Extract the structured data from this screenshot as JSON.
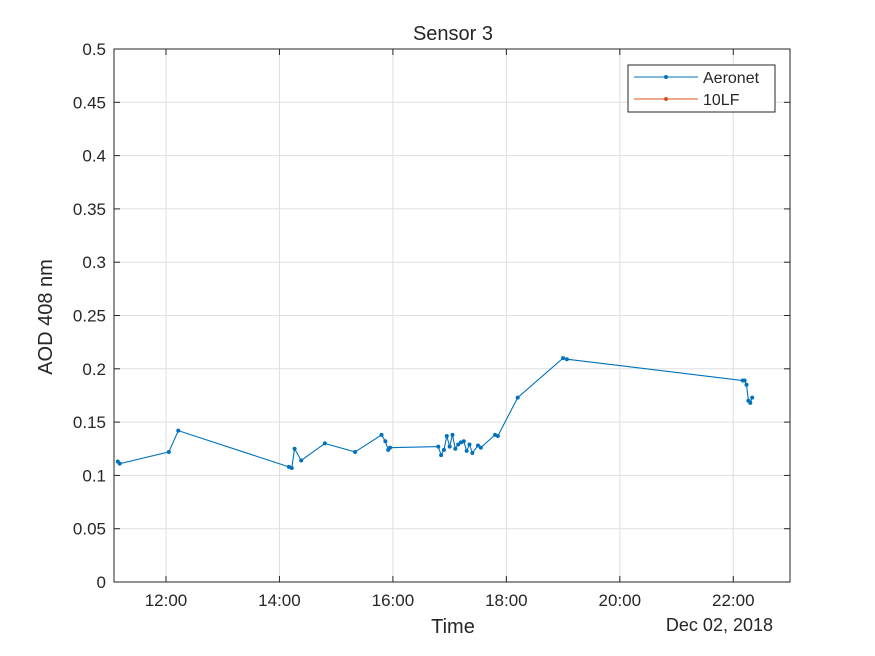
{
  "chart_data": {
    "type": "line",
    "title": "Sensor 3",
    "xlabel": "Time",
    "ylabel": "AOD 408 nm",
    "x_date_label": "Dec 02, 2018",
    "xlim": [
      "11:05",
      "23:00"
    ],
    "ylim": [
      0,
      0.5
    ],
    "grid": true,
    "legend_position": "top-right",
    "x_ticks": [
      {
        "value": "12:00",
        "label": "12:00"
      },
      {
        "value": "14:00",
        "label": "14:00"
      },
      {
        "value": "16:00",
        "label": "16:00"
      },
      {
        "value": "18:00",
        "label": "18:00"
      },
      {
        "value": "20:00",
        "label": "20:00"
      },
      {
        "value": "22:00",
        "label": "22:00"
      }
    ],
    "y_ticks": [
      {
        "value": 0,
        "label": "0"
      },
      {
        "value": 0.05,
        "label": "0.05"
      },
      {
        "value": 0.1,
        "label": "0.1"
      },
      {
        "value": 0.15,
        "label": "0.15"
      },
      {
        "value": 0.2,
        "label": "0.2"
      },
      {
        "value": 0.25,
        "label": "0.25"
      },
      {
        "value": 0.3,
        "label": "0.3"
      },
      {
        "value": 0.35,
        "label": "0.35"
      },
      {
        "value": 0.4,
        "label": "0.4"
      },
      {
        "value": 0.45,
        "label": "0.45"
      },
      {
        "value": 0.5,
        "label": "0.5"
      }
    ],
    "series": [
      {
        "name": "Aeronet",
        "color": "#0072BD",
        "points": [
          {
            "x": "11:09",
            "y": 0.113
          },
          {
            "x": "11:11",
            "y": 0.111
          },
          {
            "x": "12:03",
            "y": 0.122
          },
          {
            "x": "12:13",
            "y": 0.142
          },
          {
            "x": "14:10",
            "y": 0.108
          },
          {
            "x": "14:13",
            "y": 0.107
          },
          {
            "x": "14:16",
            "y": 0.125
          },
          {
            "x": "14:23",
            "y": 0.114
          },
          {
            "x": "14:48",
            "y": 0.13
          },
          {
            "x": "15:20",
            "y": 0.122
          },
          {
            "x": "15:48",
            "y": 0.138
          },
          {
            "x": "15:52",
            "y": 0.132
          },
          {
            "x": "15:55",
            "y": 0.124
          },
          {
            "x": "15:57",
            "y": 0.126
          },
          {
            "x": "16:48",
            "y": 0.127
          },
          {
            "x": "16:51",
            "y": 0.119
          },
          {
            "x": "16:54",
            "y": 0.124
          },
          {
            "x": "16:57",
            "y": 0.137
          },
          {
            "x": "17:00",
            "y": 0.127
          },
          {
            "x": "17:03",
            "y": 0.138
          },
          {
            "x": "17:06",
            "y": 0.125
          },
          {
            "x": "17:09",
            "y": 0.129
          },
          {
            "x": "17:12",
            "y": 0.131
          },
          {
            "x": "17:15",
            "y": 0.132
          },
          {
            "x": "17:18",
            "y": 0.123
          },
          {
            "x": "17:21",
            "y": 0.129
          },
          {
            "x": "17:24",
            "y": 0.121
          },
          {
            "x": "17:30",
            "y": 0.128
          },
          {
            "x": "17:33",
            "y": 0.126
          },
          {
            "x": "17:48",
            "y": 0.138
          },
          {
            "x": "17:51",
            "y": 0.137
          },
          {
            "x": "18:12",
            "y": 0.173
          },
          {
            "x": "19:00",
            "y": 0.21
          },
          {
            "x": "19:04",
            "y": 0.209
          },
          {
            "x": "22:10",
            "y": 0.189
          },
          {
            "x": "22:12",
            "y": 0.189
          },
          {
            "x": "22:14",
            "y": 0.185
          },
          {
            "x": "22:16",
            "y": 0.17
          },
          {
            "x": "22:18",
            "y": 0.168
          },
          {
            "x": "22:20",
            "y": 0.173
          }
        ]
      },
      {
        "name": "10LF",
        "color": "#D95319",
        "points": []
      }
    ]
  }
}
